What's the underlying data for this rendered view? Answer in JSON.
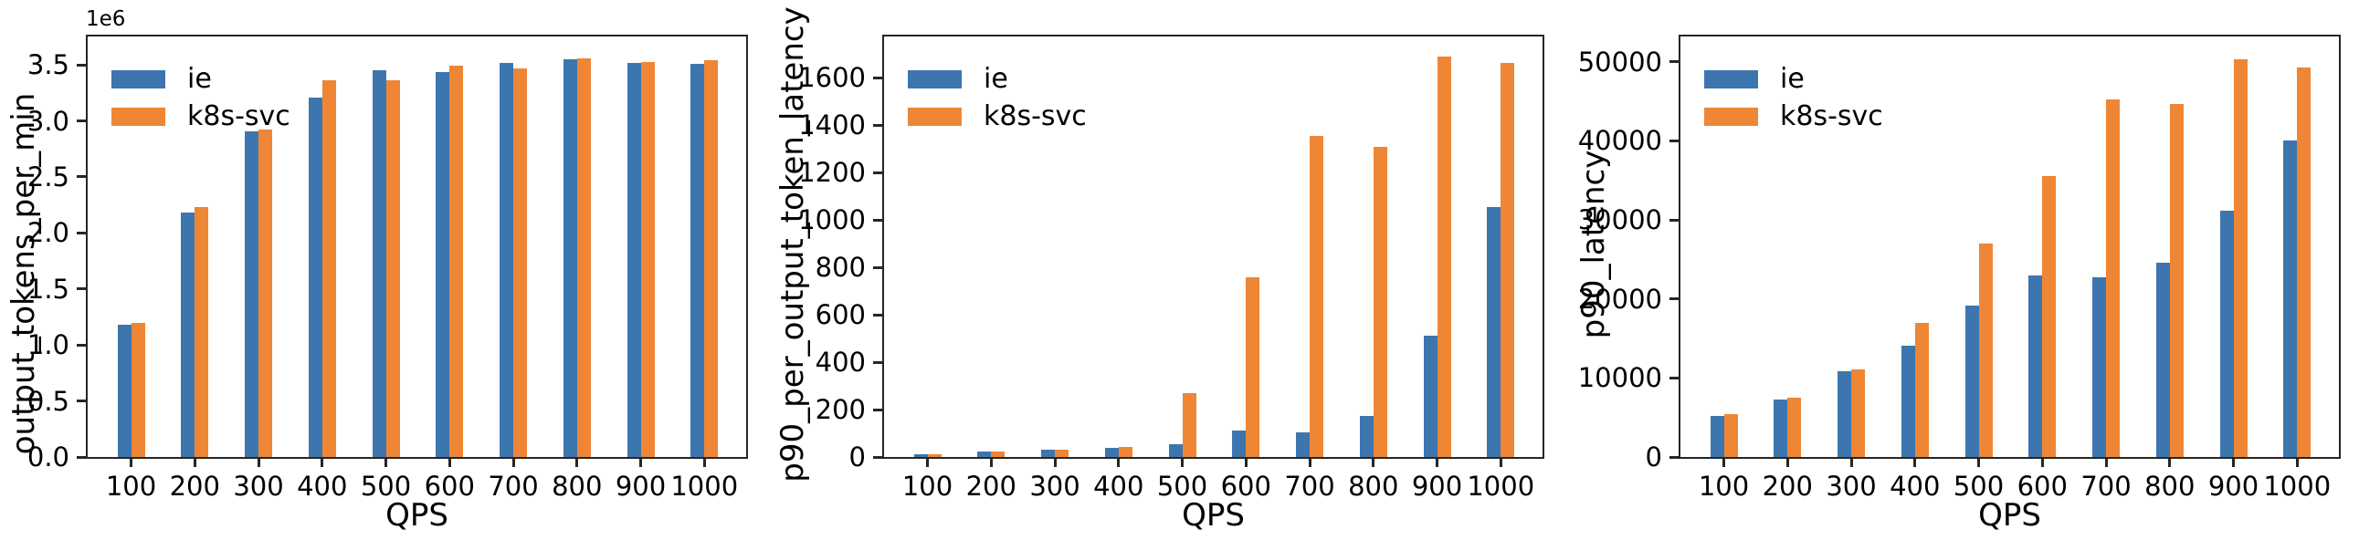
{
  "figure": {
    "background": "#ffffff",
    "axis_color": "#262626",
    "text_color": "#000000"
  },
  "colors": {
    "ie": "#3d76ae",
    "k8s_svc": "#ee8636"
  },
  "chart_data": [
    {
      "type": "bar",
      "title": "",
      "ylabel": "output_tokens_per_min",
      "xlabel": "QPS",
      "offset_text": "1e6",
      "value_unit": "1e6",
      "legend_position": "upper-left",
      "grid": false,
      "categories": [
        "100",
        "200",
        "300",
        "400",
        "500",
        "600",
        "700",
        "800",
        "900",
        "1000"
      ],
      "series": [
        {
          "name": "ie",
          "color": "#3d76ae",
          "values": [
            1.18,
            2.18,
            2.91,
            3.21,
            3.45,
            3.44,
            3.52,
            3.55,
            3.52,
            3.51
          ]
        },
        {
          "name": "k8s-svc",
          "color": "#ee8636",
          "values": [
            1.2,
            2.23,
            2.92,
            3.36,
            3.36,
            3.49,
            3.47,
            3.56,
            3.53,
            3.54
          ]
        }
      ],
      "ymax": 3.754,
      "yticks": [
        {
          "v": 0.0,
          "label": "0.0"
        },
        {
          "v": 0.5,
          "label": "0.5"
        },
        {
          "v": 1.0,
          "label": "1.0"
        },
        {
          "v": 1.5,
          "label": "1.5"
        },
        {
          "v": 2.0,
          "label": "2.0"
        },
        {
          "v": 2.5,
          "label": "2.5"
        },
        {
          "v": 3.0,
          "label": "3.0"
        },
        {
          "v": 3.5,
          "label": "3.5"
        }
      ]
    },
    {
      "type": "bar",
      "title": "",
      "ylabel": "p90_per_output_token_latency",
      "xlabel": "QPS",
      "offset_text": "",
      "value_unit": "",
      "legend_position": "upper-left",
      "grid": false,
      "categories": [
        "100",
        "200",
        "300",
        "400",
        "500",
        "600",
        "700",
        "800",
        "900",
        "1000"
      ],
      "series": [
        {
          "name": "ie",
          "color": "#3d76ae",
          "values": [
            12,
            25,
            31,
            38,
            52,
            113,
            105,
            172,
            512,
            1055
          ]
        },
        {
          "name": "k8s-svc",
          "color": "#ee8636",
          "values": [
            11,
            24,
            30,
            42,
            270,
            760,
            1355,
            1310,
            1690,
            1663
          ]
        }
      ],
      "ymax": 1775,
      "yticks": [
        {
          "v": 0,
          "label": "0"
        },
        {
          "v": 200,
          "label": "200"
        },
        {
          "v": 400,
          "label": "400"
        },
        {
          "v": 600,
          "label": "600"
        },
        {
          "v": 800,
          "label": "800"
        },
        {
          "v": 1000,
          "label": "1000"
        },
        {
          "v": 1200,
          "label": "1200"
        },
        {
          "v": 1400,
          "label": "1400"
        },
        {
          "v": 1600,
          "label": "1600"
        }
      ]
    },
    {
      "type": "bar",
      "title": "",
      "ylabel": "p90_latency",
      "xlabel": "QPS",
      "offset_text": "",
      "value_unit": "",
      "legend_position": "upper-left",
      "grid": false,
      "categories": [
        "100",
        "200",
        "300",
        "400",
        "500",
        "600",
        "700",
        "800",
        "900",
        "1000"
      ],
      "series": [
        {
          "name": "ie",
          "color": "#3d76ae",
          "values": [
            5200,
            7300,
            10900,
            14100,
            19100,
            23000,
            22700,
            24600,
            31200,
            40100
          ]
        },
        {
          "name": "k8s-svc",
          "color": "#ee8636",
          "values": [
            5400,
            7550,
            11100,
            17000,
            27000,
            35500,
            45200,
            44700,
            50300,
            49300
          ]
        }
      ],
      "ymax": 53200,
      "yticks": [
        {
          "v": 0,
          "label": "0"
        },
        {
          "v": 10000,
          "label": "10000"
        },
        {
          "v": 20000,
          "label": "20000"
        },
        {
          "v": 30000,
          "label": "30000"
        },
        {
          "v": 40000,
          "label": "40000"
        },
        {
          "v": 50000,
          "label": "50000"
        }
      ]
    }
  ]
}
